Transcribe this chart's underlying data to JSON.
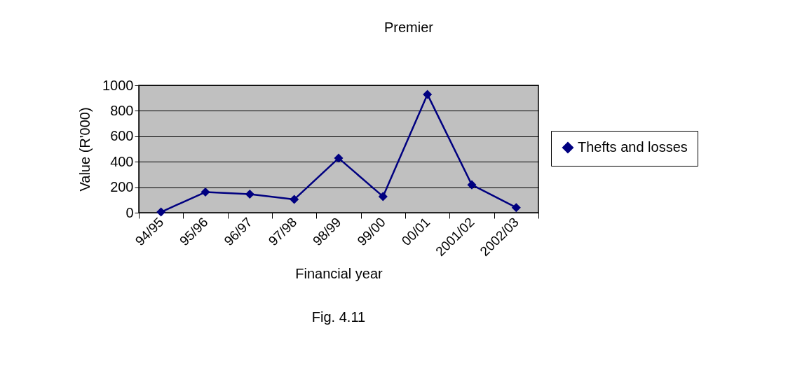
{
  "chart_data": {
    "type": "line",
    "title": "Premier",
    "xlabel": "Financial year",
    "ylabel": "Value (R'000)",
    "annotations": [
      "Fig. 4.11"
    ],
    "categories": [
      "94/95",
      "95/96",
      "96/97",
      "97/98",
      "98/99",
      "99/00",
      "00/01",
      "2001/02",
      "2002/03"
    ],
    "series": [
      {
        "name": "Thefts and losses",
        "color": "#000080",
        "values": [
          5,
          162,
          146,
          104,
          428,
          127,
          929,
          219,
          40
        ]
      }
    ],
    "ylim": [
      0,
      1000
    ],
    "yticks": [
      0,
      200,
      400,
      600,
      800,
      1000
    ],
    "grid": "y",
    "legend": "right",
    "marker": "diamond",
    "line_style": "solid"
  }
}
